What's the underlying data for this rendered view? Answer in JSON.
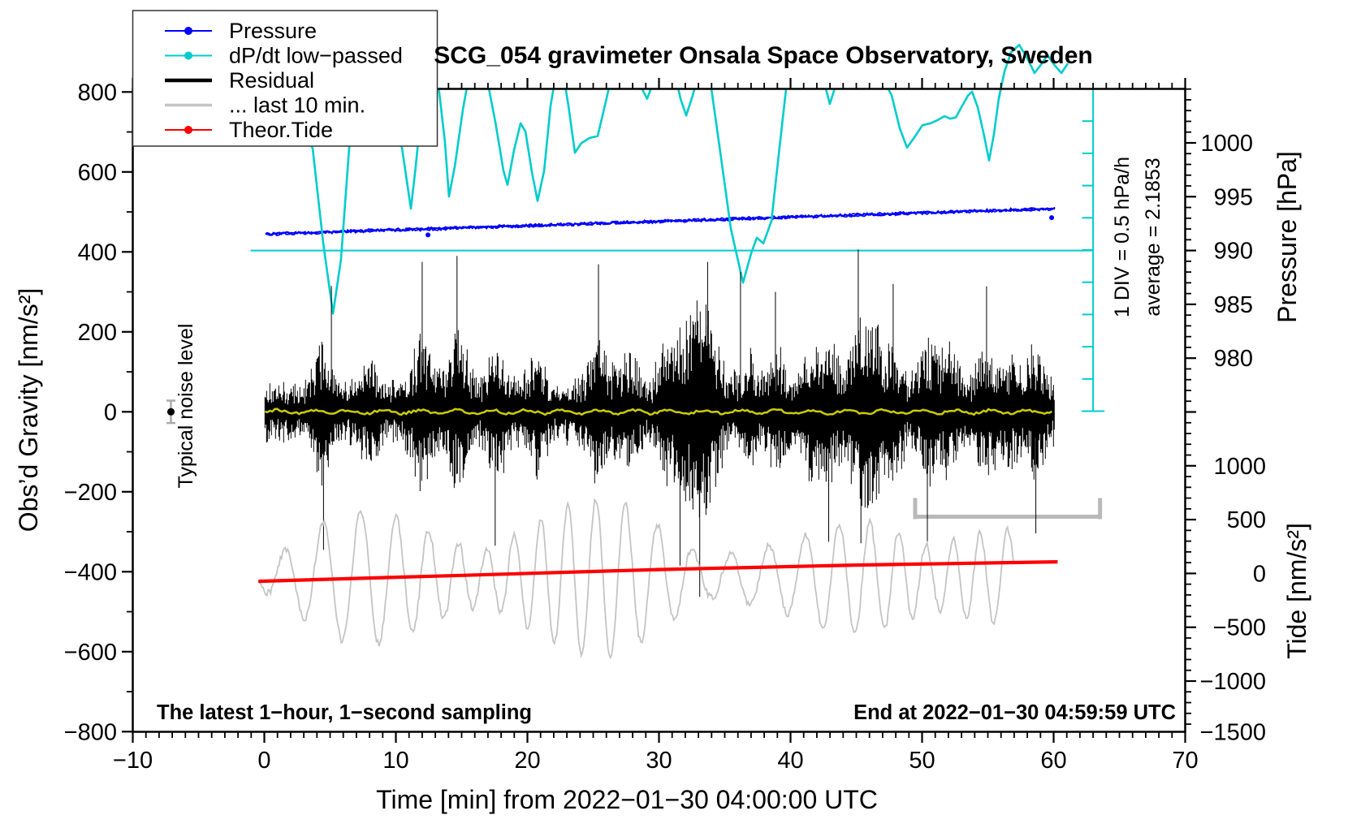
{
  "window_title": "SCG_054 gravimeter Onsala Space Observatory, Sweden",
  "colors": {
    "pressure": "#0000ff",
    "dpdt": "#00cccc",
    "residual": "#000000",
    "residual_lowpass": "#cccc00",
    "last10": "#c4c4c4",
    "tide": "#ff0000",
    "frame": "#000000",
    "range_bar": "#b9b9b9",
    "noise_err": "#aaaaaa"
  },
  "chart_data": {
    "type": "line",
    "title": "SCG_054 gravimeter Onsala Space Observatory, Sweden",
    "xlabel": "Time [min] from 2022−01−30 04:00:00 UTC",
    "ylabel_left": "Obs’d Gravity [nm/s²]",
    "ylabel_right_top": "Pressure [hPa]",
    "ylabel_right_bottom": "Tide [nm/s²]",
    "grid": false,
    "x_axis": {
      "min": -10,
      "max": 70,
      "major_ticks": [
        -10,
        0,
        10,
        20,
        30,
        40,
        50,
        60,
        70
      ],
      "minor_step": 1
    },
    "gravity_axis": {
      "min": -800,
      "max": 800,
      "major_ticks": [
        800,
        600,
        400,
        200,
        0,
        -200,
        -400,
        -600,
        -800
      ],
      "minor_step": 100
    },
    "pressure_axis": {
      "labeled_ticks": [
        1000,
        995,
        990,
        985,
        980
      ],
      "minor_step": 1
    },
    "tide_axis": {
      "labeled_ticks": [
        1000,
        500,
        0,
        -500,
        -1000,
        -1500
      ],
      "minor_step": 100
    },
    "legend": {
      "position": "top-left",
      "items": [
        {
          "label": "Pressure",
          "color": "#0000ff",
          "marker": true,
          "lw": 2
        },
        {
          "label": "dP/dt low−passed",
          "color": "#00cccc",
          "marker": true,
          "lw": 2
        },
        {
          "label": "Residual",
          "color": "#000000",
          "marker": false,
          "lw": 4.5
        },
        {
          "label": "... last 10 min.",
          "color": "#c4c4c4",
          "marker": false,
          "lw": 3.5
        },
        {
          "label": "Theor.Tide",
          "color": "#ff0000",
          "marker": true,
          "lw": 2
        }
      ]
    },
    "annotations": {
      "sampling_note": "The latest 1−hour, 1−second sampling",
      "end_note": "End at 2022−01−30 04:59:59 UTC",
      "noise_note": "Typical noise level",
      "div_note": "1 DIV = 0.5 hPa/h",
      "avg_note": "average = 2.1853"
    },
    "dpdt_scale": {
      "units_per_div": 0.5,
      "unit": "hPa/h",
      "top": 2.5,
      "bottom": -2.5,
      "t_pos": 63.0,
      "zero_line_t_start": -1.05
    },
    "last10_range_bar": {
      "t_start": 49.35,
      "t_end": 63.65,
      "tide_level": 527
    },
    "noise_marker": {
      "t": -7.1,
      "gravity": 0,
      "err_nm": 28
    },
    "series": [
      {
        "name": "pressure",
        "type": "noisy-line",
        "axis": "pressure",
        "color": "#0000ff",
        "t_start": 0.1,
        "t_end": 60.2,
        "p_start": 991.52,
        "p_end": 993.9,
        "noise_hpa": 0.12,
        "outlier_points": [
          [
            12.44,
            991.45
          ],
          [
            59.85,
            993.05
          ]
        ]
      },
      {
        "name": "dpdt-low-passed",
        "type": "line",
        "axis": "dpdt",
        "color": "#00cccc",
        "lw": 2.6,
        "tail_unclipped_from": 55.8,
        "points": [
          [
            0.03,
            2.19
          ],
          [
            1.51,
            2.28
          ],
          [
            2.75,
            1.98
          ],
          [
            3.67,
            1.59
          ],
          [
            4.48,
            0.11
          ],
          [
            5.22,
            -0.98
          ],
          [
            5.83,
            -0.14
          ],
          [
            6.64,
            2.13
          ],
          [
            7.07,
            2.82
          ],
          [
            7.81,
            3.01
          ],
          [
            8.61,
            2.76
          ],
          [
            9.54,
            2.28
          ],
          [
            10.46,
            1.6
          ],
          [
            11.14,
            0.65
          ],
          [
            11.51,
            1.31
          ],
          [
            12.01,
            2.38
          ],
          [
            12.5,
            2.91
          ],
          [
            13.12,
            2.78
          ],
          [
            13.73,
            1.69
          ],
          [
            14.04,
            0.84
          ],
          [
            14.48,
            1.31
          ],
          [
            15.09,
            2.19
          ],
          [
            15.59,
            2.76
          ],
          [
            16.2,
            2.99
          ],
          [
            16.82,
            2.78
          ],
          [
            17.56,
            2.0
          ],
          [
            18.18,
            1.24
          ],
          [
            18.49,
            1.02
          ],
          [
            18.98,
            1.56
          ],
          [
            19.48,
            1.98
          ],
          [
            19.85,
            1.85
          ],
          [
            20.34,
            1.22
          ],
          [
            20.77,
            0.77
          ],
          [
            21.27,
            1.24
          ],
          [
            21.76,
            2.25
          ],
          [
            22.13,
            2.7
          ],
          [
            22.62,
            2.89
          ],
          [
            23.12,
            2.25
          ],
          [
            23.61,
            1.52
          ],
          [
            24.1,
            1.67
          ],
          [
            24.72,
            1.75
          ],
          [
            25.34,
            1.78
          ],
          [
            25.96,
            2.32
          ],
          [
            26.51,
            2.82
          ],
          [
            27.31,
            3.11
          ],
          [
            28.06,
            2.89
          ],
          [
            28.67,
            2.53
          ],
          [
            29.1,
            2.36
          ],
          [
            29.48,
            2.57
          ],
          [
            29.91,
            2.91
          ],
          [
            30.4,
            3.14
          ],
          [
            31.02,
            2.91
          ],
          [
            31.64,
            2.36
          ],
          [
            32.07,
            2.1
          ],
          [
            32.56,
            2.41
          ],
          [
            33.0,
            2.73
          ],
          [
            33.37,
            2.99
          ],
          [
            33.86,
            2.7
          ],
          [
            34.6,
            1.62
          ],
          [
            35.46,
            0.34
          ],
          [
            36.39,
            -0.5
          ],
          [
            37.01,
            -0.04
          ],
          [
            37.44,
            0.2
          ],
          [
            37.93,
            0.11
          ],
          [
            38.55,
            0.46
          ],
          [
            39.17,
            1.62
          ],
          [
            39.66,
            2.51
          ],
          [
            40.28,
            3.01
          ],
          [
            41.02,
            3.2
          ],
          [
            41.94,
            3.04
          ],
          [
            42.56,
            2.61
          ],
          [
            42.99,
            2.28
          ],
          [
            43.43,
            2.57
          ],
          [
            43.86,
            2.89
          ],
          [
            44.48,
            3.14
          ],
          [
            45.34,
            3.24
          ],
          [
            46.27,
            3.04
          ],
          [
            47.07,
            2.66
          ],
          [
            47.69,
            2.41
          ],
          [
            48.3,
            1.9
          ],
          [
            48.86,
            1.6
          ],
          [
            49.48,
            1.78
          ],
          [
            50.03,
            1.95
          ],
          [
            50.65,
            1.98
          ],
          [
            51.2,
            2.03
          ],
          [
            51.7,
            2.09
          ],
          [
            52.13,
            2.05
          ],
          [
            52.56,
            2.07
          ],
          [
            53.05,
            2.25
          ],
          [
            53.49,
            2.41
          ],
          [
            53.8,
            2.47
          ],
          [
            54.23,
            2.23
          ],
          [
            54.72,
            1.78
          ],
          [
            55.09,
            1.4
          ],
          [
            55.46,
            1.81
          ],
          [
            55.83,
            2.36
          ],
          [
            56.27,
            2.79
          ],
          [
            56.76,
            3.08
          ],
          [
            57.38,
            3.2
          ],
          [
            58.0,
            2.99
          ],
          [
            58.55,
            2.76
          ],
          [
            59.04,
            2.89
          ],
          [
            59.54,
            3.04
          ],
          [
            60.03,
            2.89
          ],
          [
            60.59,
            2.76
          ],
          [
            61.08,
            2.91
          ]
        ]
      },
      {
        "name": "residual",
        "type": "noise-band",
        "axis": "gravity",
        "color": "#000000",
        "center": 0,
        "t_start": 0.05,
        "t_end": 60.05,
        "base_amp_nm": 95,
        "bursts": [
          [
            4.5,
            180
          ],
          [
            8,
            120
          ],
          [
            12,
            240
          ],
          [
            14.7,
            250
          ],
          [
            17.6,
            190
          ],
          [
            20.6,
            160
          ],
          [
            25.4,
            230
          ],
          [
            27.7,
            170
          ],
          [
            30.5,
            180
          ],
          [
            31.9,
            220
          ],
          [
            33.1,
            280
          ],
          [
            34.1,
            220
          ],
          [
            36.7,
            140
          ],
          [
            38.9,
            170
          ],
          [
            41.6,
            190
          ],
          [
            43,
            200
          ],
          [
            45.2,
            300
          ],
          [
            46.4,
            220
          ],
          [
            47.8,
            180
          ],
          [
            50.4,
            200
          ],
          [
            52.1,
            180
          ],
          [
            54.9,
            190
          ],
          [
            56.7,
            140
          ],
          [
            58.6,
            170
          ]
        ],
        "spikes": [
          [
            4.5,
            -345
          ],
          [
            5.1,
            315
          ],
          [
            12,
            375
          ],
          [
            14.65,
            390
          ],
          [
            17.55,
            -335
          ],
          [
            25.4,
            369
          ],
          [
            31.6,
            -385
          ],
          [
            33.1,
            -463
          ],
          [
            33.7,
            375
          ],
          [
            36.2,
            350
          ],
          [
            38.85,
            300
          ],
          [
            42.9,
            -325
          ],
          [
            45.15,
            406
          ],
          [
            45.35,
            -329
          ],
          [
            47.8,
            320
          ],
          [
            50.4,
            -335
          ],
          [
            54.9,
            314
          ],
          [
            58.65,
            -304
          ]
        ]
      },
      {
        "name": "residual-low-passed",
        "type": "noisy-line",
        "axis": "gravity",
        "color": "#cccc00",
        "t_start": 0.05,
        "t_end": 60.0,
        "value": 0,
        "noise_nm": 5,
        "lw": 2.5
      },
      {
        "name": "last-10-min",
        "type": "beat-wave",
        "axis": "tide",
        "color": "#c4c4c4",
        "t_start": -0.45,
        "t_end": 57.0,
        "center": -40,
        "period_min": 1.6,
        "amp_min_nm": 280,
        "amp_max_nm": 900,
        "lw": 1.8
      },
      {
        "name": "theor-tide",
        "type": "line",
        "axis": "tide",
        "color": "#ff0000",
        "lw": 4.2,
        "points": [
          [
            -0.45,
            -73
          ],
          [
            15,
            -18
          ],
          [
            30,
            36
          ],
          [
            45,
            78
          ],
          [
            60.3,
            108
          ]
        ]
      }
    ]
  }
}
